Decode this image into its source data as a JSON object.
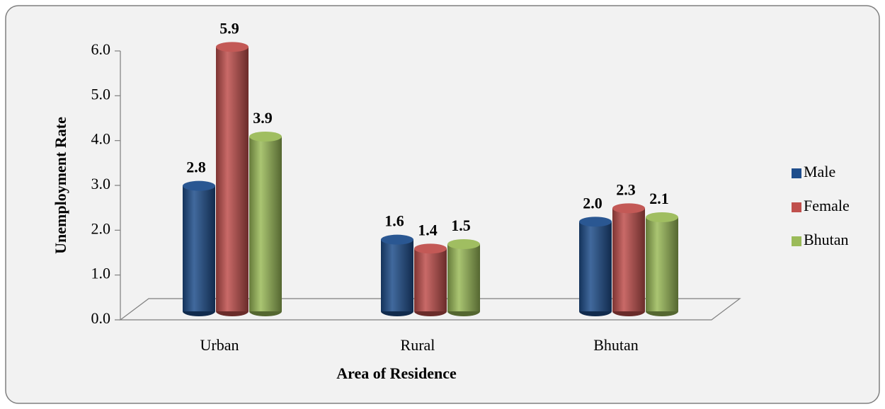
{
  "chart_data": {
    "type": "bar",
    "x_label": "Area of Residence",
    "y_label": "Unemployment Rate",
    "categories": [
      "Urban",
      "Rural",
      "Bhutan"
    ],
    "series": [
      {
        "name": "Male",
        "color": "#1f4e8c",
        "values": [
          2.8,
          1.6,
          2.0
        ],
        "value_labels": [
          "2.8",
          "1.6",
          "2.0"
        ]
      },
      {
        "name": "Female",
        "color": "#c0504d",
        "values": [
          5.9,
          1.4,
          2.3
        ],
        "value_labels": [
          "5.9",
          "1.4",
          "2.3"
        ]
      },
      {
        "name": "Bhutan",
        "color": "#9bbb59",
        "values": [
          3.9,
          1.5,
          2.1
        ],
        "value_labels": [
          "3.9",
          "1.5",
          "2.1"
        ]
      }
    ],
    "ylim": [
      0,
      6
    ],
    "yticks": [
      {
        "value": 0,
        "label": "0.0"
      },
      {
        "value": 1,
        "label": "1.0"
      },
      {
        "value": 2,
        "label": "2.0"
      },
      {
        "value": 3,
        "label": "3.0"
      },
      {
        "value": 4,
        "label": "4.0"
      },
      {
        "value": 5,
        "label": "5.0"
      },
      {
        "value": 6,
        "label": "6.0"
      }
    ],
    "legend": "right"
  }
}
